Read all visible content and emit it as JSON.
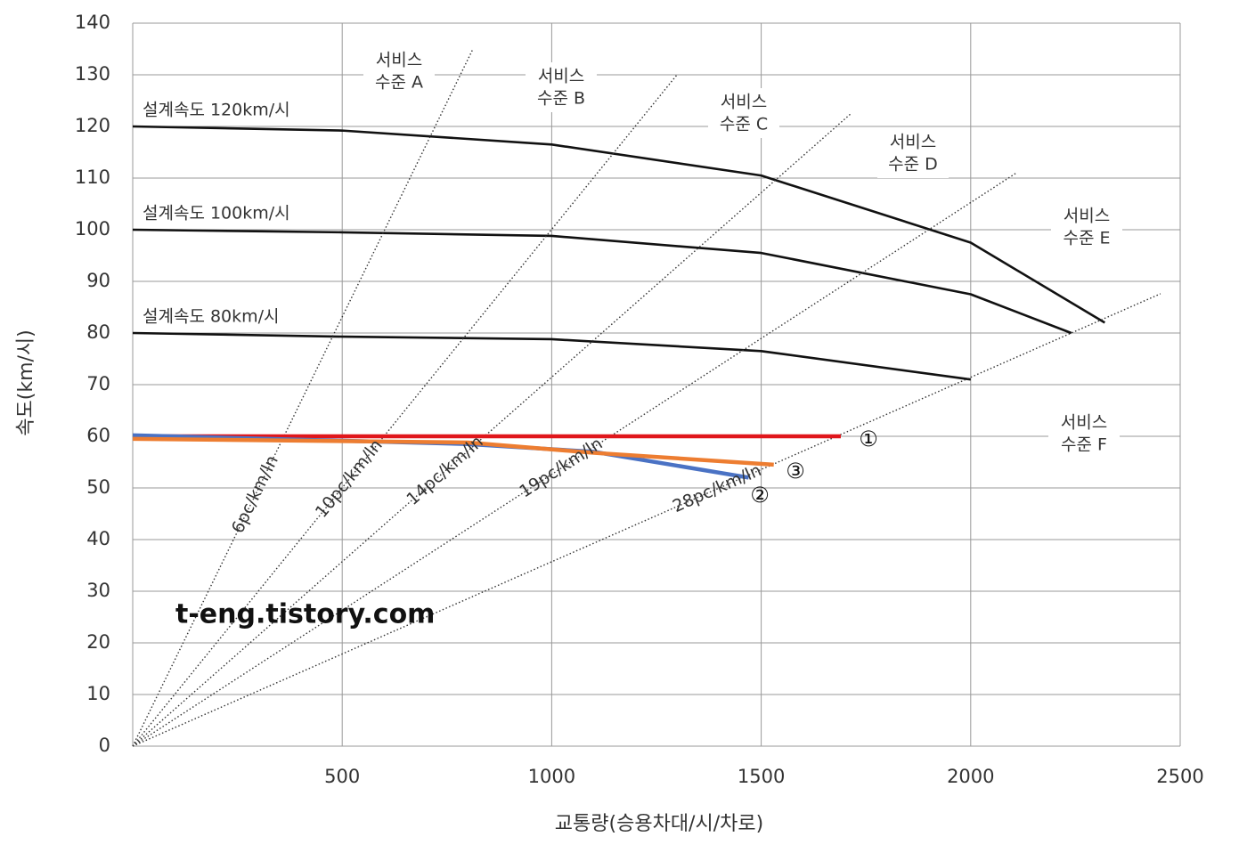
{
  "chart_data": {
    "type": "line",
    "x_label": "교통량(승용차대/시/차로)",
    "y_label": "속도(km/시)",
    "xlim": [
      0,
      2500
    ],
    "ylim": [
      0,
      140
    ],
    "xticks": [
      500,
      1000,
      1500,
      2000,
      2500
    ],
    "yticks": [
      0,
      10,
      20,
      30,
      40,
      50,
      60,
      70,
      80,
      90,
      100,
      110,
      120,
      130,
      140
    ],
    "grid": true,
    "series": [
      {
        "name": "설계속도  120km/시",
        "color": "#111111",
        "line_style": "solid",
        "x": [
          0,
          500,
          1000,
          1500,
          2000,
          2320
        ],
        "values": [
          120,
          119.2,
          116.5,
          110.5,
          97.5,
          82
        ]
      },
      {
        "name": "설계속도  100km/시",
        "color": "#111111",
        "line_style": "solid",
        "x": [
          0,
          500,
          1000,
          1500,
          2000,
          2240
        ],
        "values": [
          100,
          99.5,
          98.8,
          95.5,
          87.5,
          80
        ]
      },
      {
        "name": "설계속도   80km/시",
        "color": "#111111",
        "line_style": "solid",
        "x": [
          0,
          500,
          1000,
          1500,
          2000
        ],
        "values": [
          80,
          79.3,
          78.8,
          76.5,
          71
        ]
      },
      {
        "name": "6pc/km/ln",
        "color": "#333333",
        "line_style": "dotted",
        "x": [
          0,
          812
        ],
        "values": [
          0,
          135
        ]
      },
      {
        "name": "10pc/km/ln",
        "color": "#333333",
        "line_style": "dotted",
        "x": [
          0,
          1299
        ],
        "values": [
          0,
          130
        ]
      },
      {
        "name": "14pc/km/ln",
        "color": "#333333",
        "line_style": "dotted",
        "x": [
          0,
          1713
        ],
        "values": [
          0,
          122.4
        ]
      },
      {
        "name": "19pc/km/ln",
        "color": "#333333",
        "line_style": "dotted",
        "x": [
          0,
          2107
        ],
        "values": [
          0,
          110.9
        ]
      },
      {
        "name": "28pc/km/ln",
        "color": "#333333",
        "line_style": "dotted",
        "x": [
          0,
          2453
        ],
        "values": [
          0,
          87.6
        ]
      },
      {
        "name": "①",
        "color": "#e0161b",
        "line_style": "bold",
        "x": [
          0,
          1690
        ],
        "values": [
          60,
          60
        ]
      },
      {
        "name": "②",
        "color": "#4a72c4",
        "line_style": "bold",
        "x": [
          0,
          800,
          1100,
          1470
        ],
        "values": [
          60.2,
          58.5,
          57,
          52
        ]
      },
      {
        "name": "③",
        "color": "#ed7d31",
        "line_style": "bold",
        "x": [
          0,
          800,
          1100,
          1530
        ],
        "values": [
          59.5,
          58.8,
          56.8,
          54.5
        ]
      }
    ],
    "los_labels": [
      [
        "서비스",
        "수준 A"
      ],
      [
        "서비스",
        "수준 B"
      ],
      [
        "서비스",
        "수준 C"
      ],
      [
        "서비스",
        "수준 D"
      ],
      [
        "서비스",
        "수준 E"
      ],
      [
        "서비스",
        "수준 F"
      ]
    ],
    "watermark": "t-eng.tistory.com"
  }
}
